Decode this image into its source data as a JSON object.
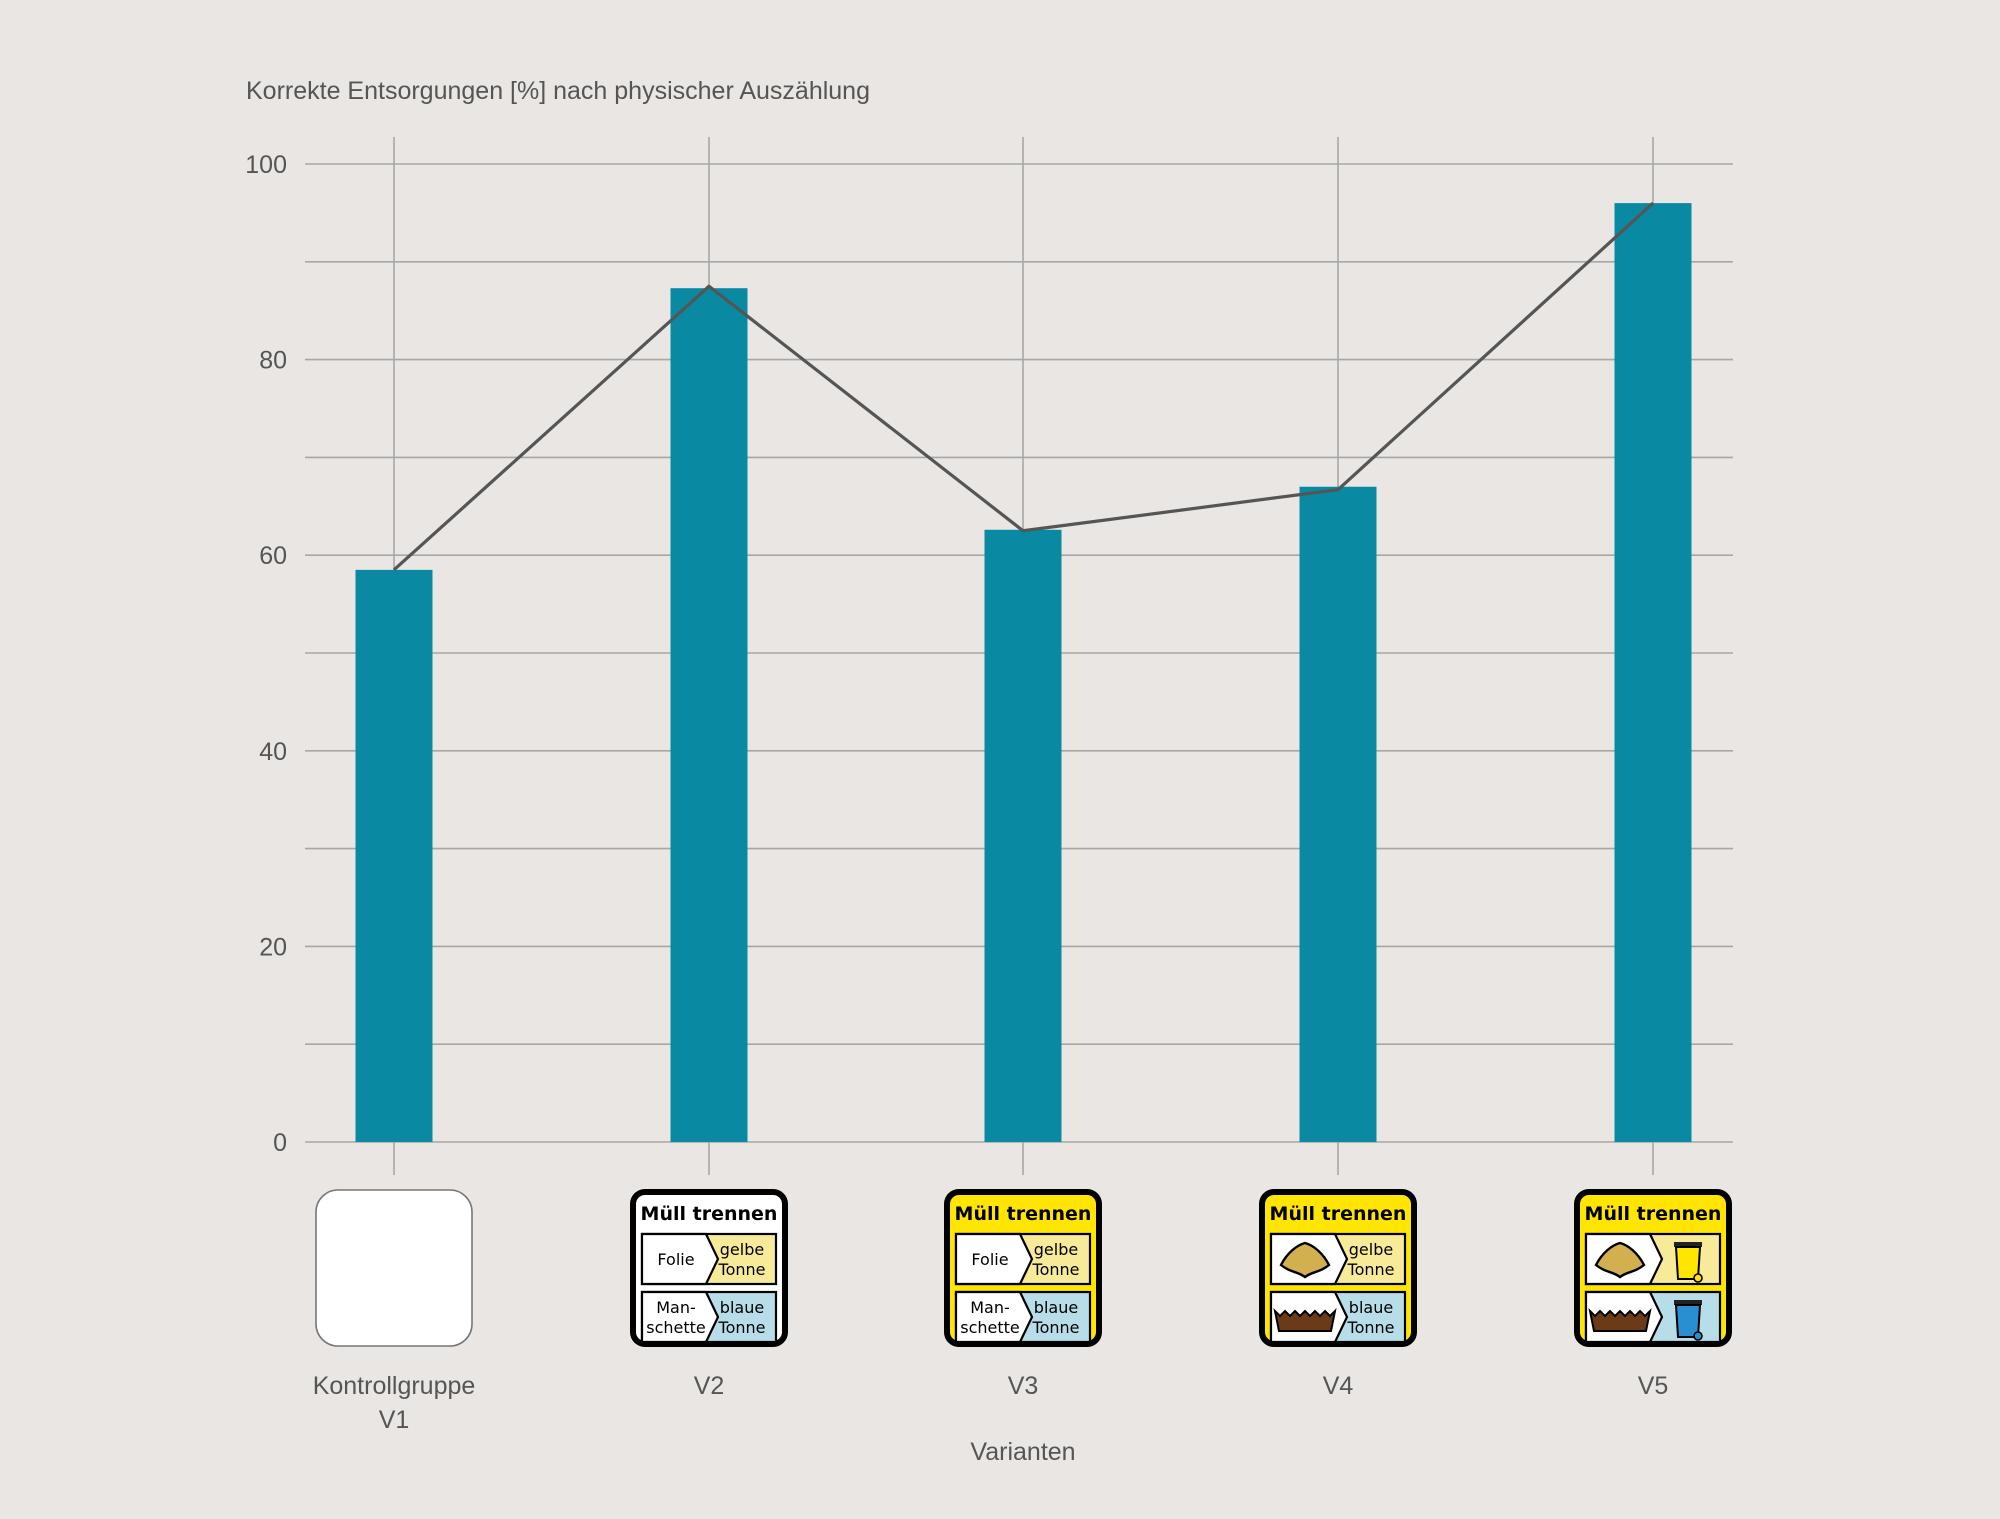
{
  "chart_data": {
    "type": "bar",
    "title": "",
    "ylabel": "Korrekte Entsorgungen [%] nach physischer Auszählung",
    "xlabel": "Varianten",
    "ylim": [
      0,
      100
    ],
    "yticks": [
      0,
      20,
      40,
      60,
      80,
      100
    ],
    "grid": true,
    "categories": [
      {
        "label_lines": [
          "Kontrollgruppe",
          "V1"
        ]
      },
      {
        "label_lines": [
          "V2"
        ]
      },
      {
        "label_lines": [
          "V3"
        ]
      },
      {
        "label_lines": [
          "V4"
        ]
      },
      {
        "label_lines": [
          "V5"
        ]
      }
    ],
    "values": [
      58.5,
      87.3,
      62.6,
      67.0,
      96.0
    ],
    "line_values": [
      58.5,
      87.5,
      62.5,
      66.7,
      96.0
    ],
    "colors": {
      "bar": "#0a8aa2",
      "line": "#555555",
      "grid": "#a7a7a7"
    }
  },
  "signs": [
    {
      "variant": "V1",
      "style": "blank"
    },
    {
      "variant": "V2",
      "style": "text",
      "bg": "#ffffff",
      "title": "Müll trennen",
      "rows": [
        {
          "left": [
            "Folie"
          ],
          "right": [
            "gelbe",
            "Tonne"
          ],
          "right_color": "#f7eb9a"
        },
        {
          "left": [
            "Man-",
            "schette"
          ],
          "right": [
            "blaue",
            "Tonne"
          ],
          "right_color": "#b7dde8"
        }
      ]
    },
    {
      "variant": "V3",
      "style": "text",
      "bg": "#ffe500",
      "title": "Müll trennen",
      "rows": [
        {
          "left": [
            "Folie"
          ],
          "right": [
            "gelbe",
            "Tonne"
          ],
          "right_color": "#f7eb9a"
        },
        {
          "left": [
            "Man-",
            "schette"
          ],
          "right": [
            "blaue",
            "Tonne"
          ],
          "right_color": "#b7dde8"
        }
      ]
    },
    {
      "variant": "V4",
      "style": "icons-text",
      "bg": "#ffe500",
      "title": "Müll trennen",
      "rows": [
        {
          "left_icon": "foil-bag-icon",
          "right": [
            "gelbe",
            "Tonne"
          ],
          "right_color": "#f7eb9a"
        },
        {
          "left_icon": "cuff-icon",
          "right": [
            "blaue",
            "Tonne"
          ],
          "right_color": "#b7dde8"
        }
      ]
    },
    {
      "variant": "V5",
      "style": "icons",
      "bg": "#ffe500",
      "title": "Müll trennen",
      "rows": [
        {
          "left_icon": "foil-bag-icon",
          "right_icon": "yellow-bin-icon",
          "right_color": "#f7eb9a"
        },
        {
          "left_icon": "cuff-icon",
          "right_icon": "blue-bin-icon",
          "right_color": "#b7dde8"
        }
      ]
    }
  ]
}
